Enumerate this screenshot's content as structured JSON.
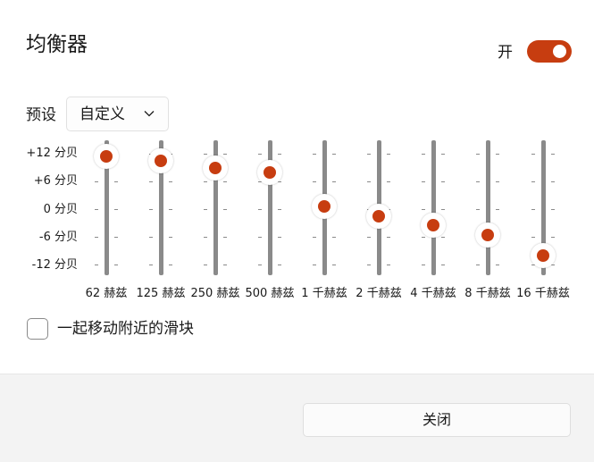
{
  "dialog": {
    "title": "均衡器"
  },
  "toggle": {
    "label": "开",
    "on": true
  },
  "preset": {
    "label": "预设",
    "value": "自定义"
  },
  "equalizer": {
    "db_labels": [
      "+12 分贝",
      "+6 分贝",
      "0 分贝",
      "-6 分贝",
      "-12 分贝"
    ],
    "db_range": [
      -12,
      12
    ],
    "bands": [
      {
        "label": "62 赫兹",
        "gain_db": 11.5
      },
      {
        "label": "125 赫兹",
        "gain_db": 10.5
      },
      {
        "label": "250 赫兹",
        "gain_db": 9.0
      },
      {
        "label": "500 赫兹",
        "gain_db": 8.0
      },
      {
        "label": "1 千赫兹",
        "gain_db": 0.5
      },
      {
        "label": "2 千赫兹",
        "gain_db": -1.5
      },
      {
        "label": "4 千赫兹",
        "gain_db": -3.5
      },
      {
        "label": "8 千赫兹",
        "gain_db": -5.7
      },
      {
        "label": "16 千赫兹",
        "gain_db": -10.0
      }
    ]
  },
  "move_nearby": {
    "label": "一起移动附近的滑块",
    "checked": false
  },
  "footer": {
    "close_label": "关闭"
  },
  "colors": {
    "accent": "#c73d10",
    "track": "#8a8a8a"
  }
}
